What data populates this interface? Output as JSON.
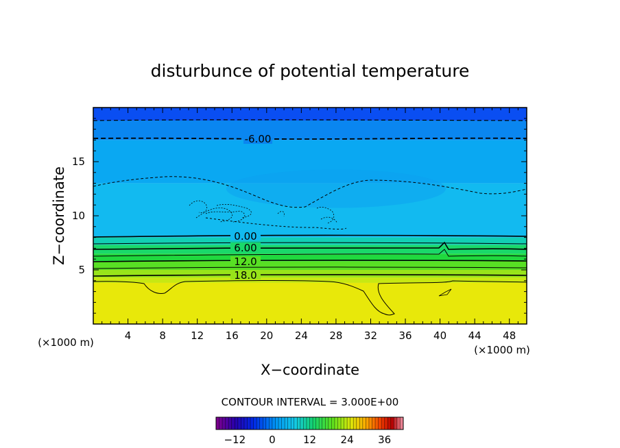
{
  "chart_data": {
    "type": "heatmap",
    "title": "disturbunce of potential temperature",
    "xlabel": "X−coordinate",
    "ylabel": "Z−coordinate",
    "x_unit_left": "(×1000 m)",
    "x_unit_right": "(×1000 m)",
    "xlim": [
      0,
      50
    ],
    "ylim": [
      0,
      20
    ],
    "x_ticks": [
      4,
      8,
      12,
      16,
      20,
      24,
      28,
      32,
      36,
      40,
      44,
      48
    ],
    "y_ticks": [
      5,
      10,
      15
    ],
    "contour_interval_text": "CONTOUR INTERVAL = 3.000E+00",
    "contour_interval": 3.0,
    "contour_labels": [
      {
        "text": "-6.00",
        "x": 18.5,
        "z": 17.1
      },
      {
        "text": "0.00",
        "x": 17.5,
        "z": 8.1
      },
      {
        "text": "6.00",
        "x": 17.5,
        "z": 7.1
      },
      {
        "text": "12.0",
        "x": 17.5,
        "z": 5.8
      },
      {
        "text": "18.0",
        "x": 17.5,
        "z": 4.6
      }
    ],
    "colorbar": {
      "range": [
        -18,
        42
      ],
      "tick_values": [
        -12,
        0,
        12,
        24,
        36
      ],
      "tick_labels": [
        "−12",
        "0",
        "12",
        "24",
        "36"
      ]
    },
    "fill_bands": [
      {
        "z": [
          18.8,
          20
        ],
        "color": "#0a4ef2"
      },
      {
        "z": [
          17.0,
          18.8
        ],
        "color": "#0a86f0"
      },
      {
        "z": [
          13.0,
          17.0
        ],
        "color": "#0aa8f2"
      },
      {
        "z": [
          8.0,
          13.0
        ],
        "color": "#12baf0"
      },
      {
        "z": [
          7.3,
          8.0
        ],
        "color": "#12cfb4"
      },
      {
        "z": [
          6.5,
          7.3
        ],
        "color": "#1ad86a"
      },
      {
        "z": [
          5.8,
          6.5
        ],
        "color": "#20d83e"
      },
      {
        "z": [
          5.0,
          5.8
        ],
        "color": "#58e024"
      },
      {
        "z": [
          4.3,
          5.0
        ],
        "color": "#98e41a"
      },
      {
        "z": [
          3.8,
          4.3
        ],
        "color": "#c8e812"
      },
      {
        "z": [
          0,
          3.8
        ],
        "color": "#e8e80a"
      }
    ]
  }
}
